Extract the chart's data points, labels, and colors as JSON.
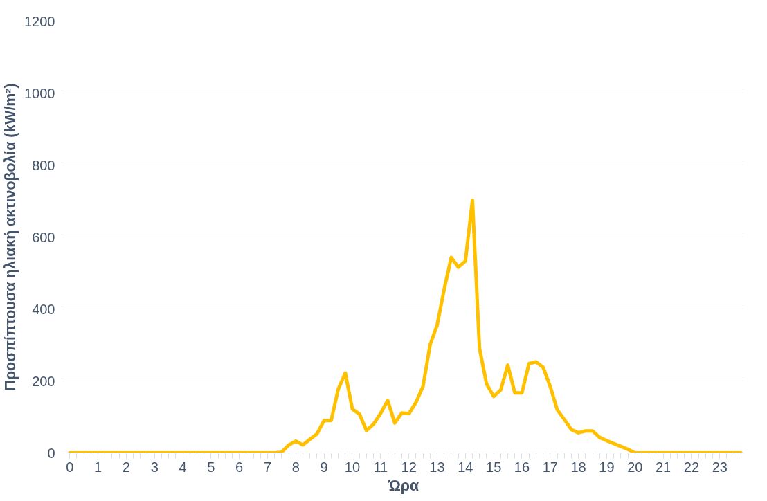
{
  "chart_data": {
    "type": "line",
    "xlabel": "Ώρα",
    "ylabel": "Προσπίπτουσα ηλιακή ακτινοβολία (kW/m²)",
    "x": [
      0,
      0.25,
      0.5,
      0.75,
      1,
      1.25,
      1.5,
      1.75,
      2,
      2.25,
      2.5,
      2.75,
      3,
      3.25,
      3.5,
      3.75,
      4,
      4.25,
      4.5,
      4.75,
      5,
      5.25,
      5.5,
      5.75,
      6,
      6.25,
      6.5,
      6.75,
      7,
      7.25,
      7.5,
      7.75,
      8,
      8.25,
      8.5,
      8.75,
      9,
      9.25,
      9.5,
      9.75,
      10,
      10.25,
      10.5,
      10.75,
      11,
      11.25,
      11.5,
      11.75,
      12,
      12.25,
      12.5,
      12.75,
      13,
      13.25,
      13.5,
      13.75,
      14,
      14.25,
      14.5,
      14.75,
      15,
      15.25,
      15.5,
      15.75,
      16,
      16.25,
      16.5,
      16.75,
      17,
      17.25,
      17.5,
      17.75,
      18,
      18.25,
      18.5,
      18.75,
      19,
      19.25,
      19.5,
      19.75,
      20,
      20.25,
      20.5,
      20.75,
      21,
      21.25,
      21.5,
      21.75,
      22,
      22.25,
      22.5,
      22.75,
      23,
      23.25,
      23.5,
      23.75
    ],
    "series": [
      {
        "color": "#ffc000",
        "values": [
          0,
          0,
          0,
          0,
          0,
          0,
          0,
          0,
          0,
          0,
          0,
          0,
          0,
          0,
          0,
          0,
          0,
          0,
          0,
          0,
          0,
          0,
          0,
          0,
          0,
          0,
          0,
          0,
          0,
          0,
          2,
          22,
          33,
          22,
          38,
          53,
          90,
          90,
          177,
          222,
          122,
          108,
          62,
          80,
          110,
          146,
          83,
          111,
          109,
          140,
          185,
          300,
          355,
          455,
          543,
          516,
          533,
          702,
          290,
          192,
          157,
          175,
          244,
          167,
          167,
          248,
          253,
          238,
          185,
          120,
          93,
          65,
          56,
          61,
          61,
          43,
          34,
          26,
          18,
          10,
          0,
          0,
          0,
          0,
          0,
          0,
          0,
          0,
          0,
          0,
          0,
          0,
          0,
          0,
          0,
          0
        ]
      }
    ],
    "xlim": [
      -0.25,
      23.875
    ],
    "xticks": [
      0,
      1,
      2,
      3,
      4,
      5,
      6,
      7,
      8,
      9,
      10,
      11,
      12,
      13,
      14,
      15,
      16,
      17,
      18,
      19,
      20,
      21,
      22,
      23
    ],
    "ylim": [
      0,
      1200
    ],
    "yticks": [
      0,
      200,
      400,
      600,
      800,
      1000,
      1200
    ],
    "grid": "y",
    "marker": "none",
    "line_style": "solid"
  }
}
